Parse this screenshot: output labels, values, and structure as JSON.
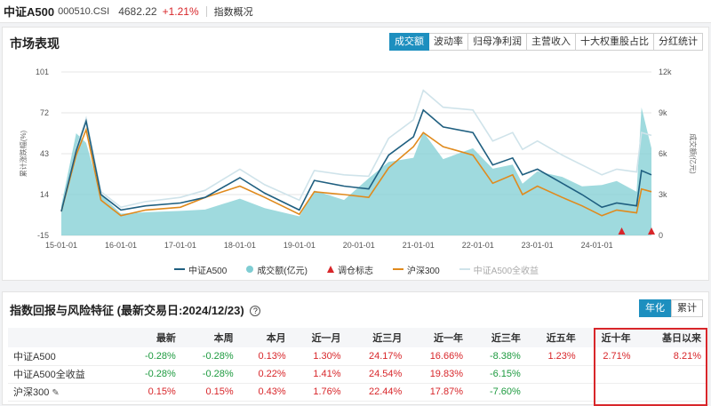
{
  "topbar": {
    "name": "中证A500",
    "code": "000510.CSI",
    "price": "4682.22",
    "change": "+1.21%",
    "overview": "指数概况"
  },
  "market": {
    "title": "市场表现",
    "tabs": [
      "成交额",
      "波动率",
      "归母净利润",
      "主营收入",
      "十大权重股占比",
      "分红统计"
    ],
    "active_tab": "成交额"
  },
  "legend": [
    {
      "label": "中证A500",
      "kind": "line",
      "color": "#1f5f80"
    },
    {
      "label": "成交额(亿元)",
      "kind": "dot",
      "color": "#7fcdd3"
    },
    {
      "label": "调仓标志",
      "kind": "tri",
      "color": "#d8262a"
    },
    {
      "label": "沪深300",
      "kind": "line",
      "color": "#e08a1c"
    },
    {
      "label": "中证A500全收益",
      "kind": "line",
      "color": "#cfe3ea"
    }
  ],
  "chart_data": {
    "type": "line",
    "x_ticks": [
      "15-01-01",
      "16-01-01",
      "17-01-01",
      "18-01-01",
      "19-01-01",
      "20-01-01",
      "21-01-01",
      "22-01-01",
      "23-01-01",
      "24-01-01"
    ],
    "ylabel": "累计涨跌幅(%)",
    "y2label": "成交额(亿元)",
    "y_ticks": [
      "101",
      "72",
      "43",
      "14",
      "-15"
    ],
    "y2_ticks": [
      "12k",
      "9k",
      "6k",
      "3k",
      "0"
    ],
    "ylim": [
      -15,
      101
    ],
    "y2lim": [
      0,
      12000
    ],
    "x": [
      "2015-01",
      "2015-04",
      "2015-06",
      "2015-09",
      "2016-01",
      "2016-06",
      "2017-01",
      "2017-06",
      "2018-01",
      "2018-06",
      "2019-01",
      "2019-04",
      "2019-10",
      "2020-03",
      "2020-07",
      "2020-12",
      "2021-02",
      "2021-06",
      "2021-12",
      "2022-04",
      "2022-08",
      "2022-10",
      "2023-01",
      "2023-06",
      "2023-10",
      "2024-02",
      "2024-05",
      "2024-09",
      "2024-10",
      "2024-12"
    ],
    "series": [
      {
        "name": "中证A500",
        "color": "#1f5f80",
        "values": [
          2,
          45,
          66,
          14,
          3,
          6,
          8,
          12,
          26,
          15,
          3,
          24,
          20,
          18,
          42,
          55,
          74,
          62,
          58,
          35,
          40,
          28,
          32,
          22,
          14,
          5,
          8,
          6,
          31,
          28
        ]
      },
      {
        "name": "沪深300",
        "color": "#e08a1c",
        "values": [
          2,
          42,
          60,
          10,
          -1,
          3,
          5,
          12,
          20,
          12,
          0,
          16,
          14,
          12,
          33,
          48,
          58,
          48,
          42,
          22,
          28,
          14,
          20,
          12,
          6,
          -1,
          3,
          1,
          18,
          16
        ]
      },
      {
        "name": "中证A500全收益",
        "color": "#cfe3ea",
        "values": [
          2,
          46,
          68,
          16,
          5,
          9,
          12,
          17,
          32,
          21,
          10,
          31,
          28,
          27,
          54,
          67,
          88,
          76,
          74,
          52,
          58,
          46,
          52,
          42,
          35,
          28,
          32,
          30,
          58,
          56
        ]
      },
      {
        "name": "成交额(亿元)",
        "color": "#7fcdd3",
        "axis": "right",
        "values": [
          2200,
          7500,
          6800,
          3000,
          1600,
          1700,
          1800,
          1900,
          2700,
          2000,
          1400,
          3300,
          2600,
          4200,
          5400,
          5700,
          7600,
          5600,
          6400,
          4900,
          5200,
          3800,
          4700,
          4300,
          3600,
          3700,
          4000,
          3200,
          9400,
          6400
        ]
      }
    ],
    "rebalance_markers_x": [
      "2024-06",
      "2024-12"
    ]
  },
  "returns": {
    "title": "指数回报与风险特征",
    "last_trade": "(最新交易日:2024/12/23)",
    "help_icon": "?",
    "period_tabs": [
      "年化",
      "累计"
    ],
    "active_period": "年化",
    "columns": [
      "",
      "最新",
      "本周",
      "本月",
      "近一月",
      "近三月",
      "近一年",
      "近三年",
      "近五年",
      "近十年",
      "基日以来"
    ],
    "rows": [
      {
        "name": "中证A500",
        "values": [
          "-0.28%",
          "-0.28%",
          "0.13%",
          "1.30%",
          "24.17%",
          "16.66%",
          "-8.38%",
          "1.23%",
          "2.71%",
          "8.21%"
        ]
      },
      {
        "name": "中证A500全收益",
        "values": [
          "-0.28%",
          "-0.28%",
          "0.22%",
          "1.41%",
          "24.54%",
          "19.83%",
          "-6.15%",
          "",
          "",
          ""
        ]
      },
      {
        "name": "沪深300",
        "values": [
          "0.15%",
          "0.15%",
          "0.43%",
          "1.76%",
          "22.44%",
          "17.87%",
          "-7.60%",
          "",
          "",
          ""
        ]
      }
    ]
  }
}
